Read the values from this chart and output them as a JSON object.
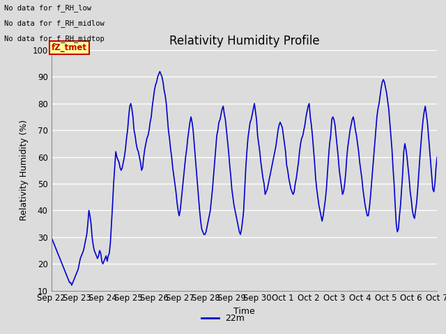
{
  "title": "Relativity Humidity Profile",
  "xlabel": "Time",
  "ylabel": "Relativity Humidity (%)",
  "ylim": [
    10,
    100
  ],
  "line_color": "#0000CC",
  "line_width": 1.2,
  "legend_label": "22m",
  "legend_line_color": "#0000CC",
  "background_color": "#DCDCDC",
  "plot_bg_color": "#DCDCDC",
  "grid_color": "#FFFFFF",
  "no_data_texts": [
    "No data for f_RH_low",
    "No data for f_RH_midlow",
    "No data for f_RH_midtop"
  ],
  "fz_label": "fZ_tmet",
  "fz_label_color": "#CC0000",
  "fz_label_bg": "#FFFF99",
  "xtick_labels": [
    "Sep 22",
    "Sep 23",
    "Sep 24",
    "Sep 25",
    "Sep 26",
    "Sep 27",
    "Sep 28",
    "Sep 29",
    "Sep 30",
    "Oct 1",
    "Oct 2",
    "Oct 3",
    "Oct 4",
    "Oct 5",
    "Oct 6",
    "Oct 7"
  ],
  "ytick_values": [
    10,
    20,
    30,
    40,
    50,
    60,
    70,
    80,
    90,
    100
  ],
  "x_values": [
    0,
    1,
    2,
    3,
    4,
    5,
    6,
    7,
    8,
    9,
    10,
    11,
    12,
    13,
    14,
    15,
    16,
    17,
    18,
    19,
    20,
    21,
    22,
    23,
    24,
    25,
    26,
    27,
    28,
    29,
    30,
    31,
    32,
    33,
    34,
    35,
    36,
    37,
    38,
    39,
    40,
    41,
    42,
    43,
    44,
    45,
    46,
    47,
    48,
    49,
    50,
    51,
    52,
    53,
    54,
    55,
    56,
    57,
    58,
    59,
    60,
    61,
    62,
    63,
    64,
    65,
    66,
    67,
    68,
    69,
    70,
    71,
    72,
    73,
    74,
    75,
    76,
    77,
    78,
    79,
    80,
    81,
    82,
    83,
    84,
    85,
    86,
    87,
    88,
    89,
    90,
    91,
    92,
    93,
    94,
    95,
    96,
    97,
    98,
    99,
    100,
    101,
    102,
    103,
    104,
    105,
    106,
    107,
    108,
    109,
    110,
    111,
    112,
    113,
    114,
    115,
    116,
    117,
    118,
    119,
    120,
    121,
    122,
    123,
    124,
    125,
    126,
    127,
    128,
    129,
    130,
    131,
    132,
    133,
    134,
    135,
    136,
    137,
    138,
    139,
    140,
    141,
    142,
    143,
    144,
    145,
    146,
    147,
    148,
    149,
    150,
    151,
    152,
    153,
    154,
    155,
    156,
    157,
    158,
    159,
    160,
    161,
    162,
    163,
    164,
    165,
    166,
    167,
    168,
    169,
    170,
    171,
    172,
    173,
    174,
    175,
    176,
    177,
    178,
    179,
    180,
    181,
    182,
    183,
    184,
    185,
    186,
    187,
    188,
    189,
    190,
    191,
    192,
    193,
    194,
    195,
    196,
    197,
    198,
    199,
    200,
    201,
    202,
    203,
    204,
    205,
    206,
    207,
    208,
    209,
    210,
    211,
    212,
    213,
    214,
    215,
    216,
    217,
    218,
    219,
    220,
    221,
    222,
    223,
    224,
    225,
    226,
    227,
    228,
    229,
    230,
    231,
    232,
    233,
    234,
    235,
    236,
    237,
    238,
    239,
    240,
    241,
    242,
    243,
    244,
    245,
    246,
    247,
    248,
    249,
    250,
    251,
    252,
    253,
    254,
    255,
    256,
    257,
    258,
    259,
    260,
    261,
    262,
    263,
    264,
    265,
    266,
    267,
    268,
    269,
    270,
    271,
    272,
    273,
    274,
    275,
    276,
    277,
    278,
    279,
    280,
    281,
    282,
    283,
    284,
    285,
    286,
    287,
    288,
    289,
    290,
    291,
    292,
    293,
    294,
    295,
    296,
    297,
    298,
    299,
    300,
    301,
    302,
    303,
    304,
    305,
    306,
    307,
    308,
    309,
    310,
    311,
    312,
    313,
    314,
    315,
    316,
    317,
    318,
    319,
    320,
    321,
    322,
    323,
    324,
    325,
    326,
    327,
    328,
    329,
    330,
    331,
    332,
    333,
    334,
    335,
    336,
    337,
    338,
    339,
    340,
    341,
    342,
    343,
    344,
    345,
    346,
    347,
    348,
    349,
    350,
    351,
    352,
    353,
    354,
    355,
    356,
    357,
    358,
    359
  ],
  "y_values": [
    30,
    29,
    28,
    27,
    26,
    25,
    24,
    23,
    22,
    21,
    20,
    19,
    18,
    17,
    16,
    15,
    14,
    13,
    13,
    12,
    13,
    14,
    15,
    16,
    17,
    18,
    20,
    22,
    23,
    24,
    25,
    27,
    29,
    31,
    35,
    40,
    38,
    35,
    30,
    27,
    25,
    24,
    23,
    22,
    23,
    25,
    24,
    21,
    20,
    21,
    22,
    23,
    21,
    23,
    24,
    28,
    35,
    42,
    50,
    56,
    62,
    60,
    59,
    58,
    56,
    55,
    56,
    58,
    60,
    63,
    67,
    70,
    75,
    79,
    80,
    78,
    75,
    70,
    68,
    65,
    63,
    62,
    60,
    58,
    55,
    56,
    60,
    63,
    65,
    67,
    68,
    70,
    73,
    75,
    79,
    82,
    85,
    87,
    88,
    90,
    91,
    92,
    91,
    90,
    88,
    85,
    83,
    80,
    75,
    70,
    67,
    63,
    60,
    56,
    53,
    50,
    47,
    43,
    40,
    38,
    40,
    44,
    48,
    52,
    56,
    60,
    63,
    67,
    70,
    73,
    75,
    73,
    70,
    65,
    60,
    55,
    50,
    45,
    40,
    36,
    33,
    32,
    31,
    31,
    32,
    34,
    36,
    38,
    40,
    44,
    48,
    53,
    58,
    63,
    68,
    70,
    73,
    74,
    76,
    78,
    79,
    76,
    74,
    70,
    66,
    62,
    57,
    53,
    48,
    45,
    42,
    40,
    38,
    36,
    34,
    32,
    31,
    33,
    36,
    40,
    48,
    56,
    62,
    67,
    70,
    73,
    74,
    76,
    78,
    80,
    77,
    74,
    68,
    65,
    62,
    58,
    55,
    52,
    50,
    46,
    47,
    48,
    50,
    52,
    54,
    56,
    58,
    60,
    62,
    64,
    67,
    70,
    72,
    73,
    72,
    71,
    68,
    65,
    62,
    57,
    55,
    52,
    50,
    48,
    47,
    46,
    47,
    50,
    52,
    55,
    58,
    62,
    65,
    67,
    68,
    70,
    72,
    75,
    77,
    79,
    80,
    75,
    72,
    68,
    63,
    58,
    52,
    48,
    45,
    42,
    40,
    38,
    36,
    38,
    41,
    44,
    48,
    54,
    60,
    65,
    68,
    74,
    75,
    74,
    72,
    68,
    64,
    60,
    55,
    52,
    49,
    46,
    47,
    50,
    54,
    60,
    64,
    67,
    70,
    72,
    74,
    75,
    73,
    70,
    68,
    65,
    62,
    58,
    55,
    52,
    48,
    45,
    42,
    40,
    38,
    38,
    41,
    45,
    50,
    55,
    60,
    65,
    70,
    75,
    78,
    80,
    83,
    86,
    88,
    89,
    88,
    86,
    84,
    81,
    78,
    73,
    68,
    63,
    56,
    50,
    42,
    35,
    32,
    33,
    38,
    42,
    48,
    54,
    62,
    65,
    63,
    60,
    56,
    52,
    47,
    44,
    40,
    38,
    37,
    40,
    43,
    48,
    54,
    60,
    65,
    70,
    74,
    77,
    79,
    76,
    73,
    68,
    63,
    58,
    53,
    48,
    47,
    50,
    56,
    60
  ]
}
